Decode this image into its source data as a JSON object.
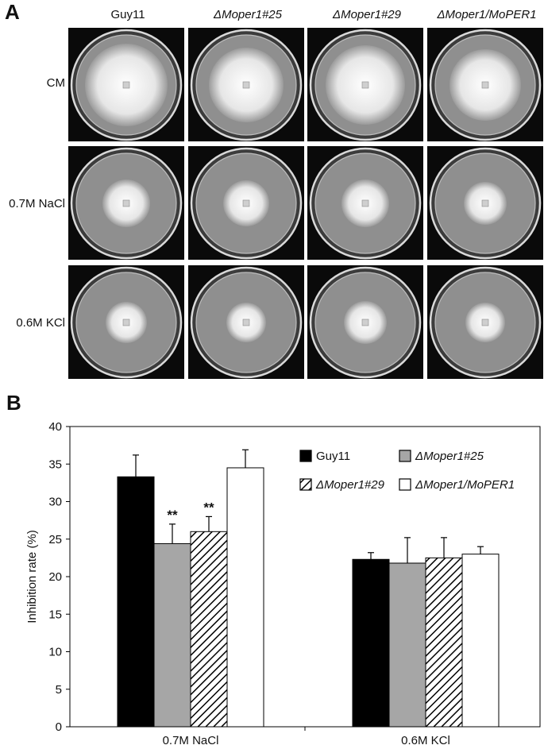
{
  "panel_a": {
    "label": "A",
    "columns": [
      "Guy11",
      "ΔMoper1#25",
      "ΔMoper1#29",
      "ΔMoper1/MoPER1"
    ],
    "rows": [
      "CM",
      "0.7M NaCl",
      "0.6M KCl"
    ],
    "colors": {
      "background": "#0a0a0a",
      "plate": "#8f8f8f",
      "colony": "#e6e6e6"
    }
  },
  "panel_b": {
    "label": "B"
  },
  "chart_data": {
    "type": "bar",
    "title": "",
    "xlabel": "",
    "ylabel": "Inhibition rate (%)",
    "ylim": [
      0,
      40
    ],
    "yticks": [
      "0",
      "5",
      "10",
      "15",
      "20",
      "25",
      "30",
      "35",
      "40"
    ],
    "categories": [
      "0.7M NaCl",
      "0.6M KCl"
    ],
    "series": [
      {
        "name": "Guy11",
        "values": [
          33.3,
          22.3
        ],
        "errors": [
          2.9,
          0.9
        ],
        "fill": "solid-black"
      },
      {
        "name": "ΔMoper1#25",
        "values": [
          24.4,
          21.8
        ],
        "errors": [
          2.6,
          3.4
        ],
        "fill": "solid-gray"
      },
      {
        "name": "ΔMoper1#29",
        "values": [
          26.0,
          22.5
        ],
        "errors": [
          2.0,
          2.7
        ],
        "fill": "hatched"
      },
      {
        "name": "ΔMoper1/MoPER1",
        "values": [
          34.5,
          23.0
        ],
        "errors": [
          2.4,
          1.0
        ],
        "fill": "white"
      }
    ],
    "annotations": [
      {
        "category": "0.7M NaCl",
        "series": "ΔMoper1#25",
        "text": "**"
      },
      {
        "category": "0.7M NaCl",
        "series": "ΔMoper1#29",
        "text": "**"
      }
    ],
    "legend_placement": "top-right",
    "grid": false,
    "colors": {
      "black": "#000000",
      "gray": "#a6a6a6",
      "white": "#ffffff"
    }
  }
}
